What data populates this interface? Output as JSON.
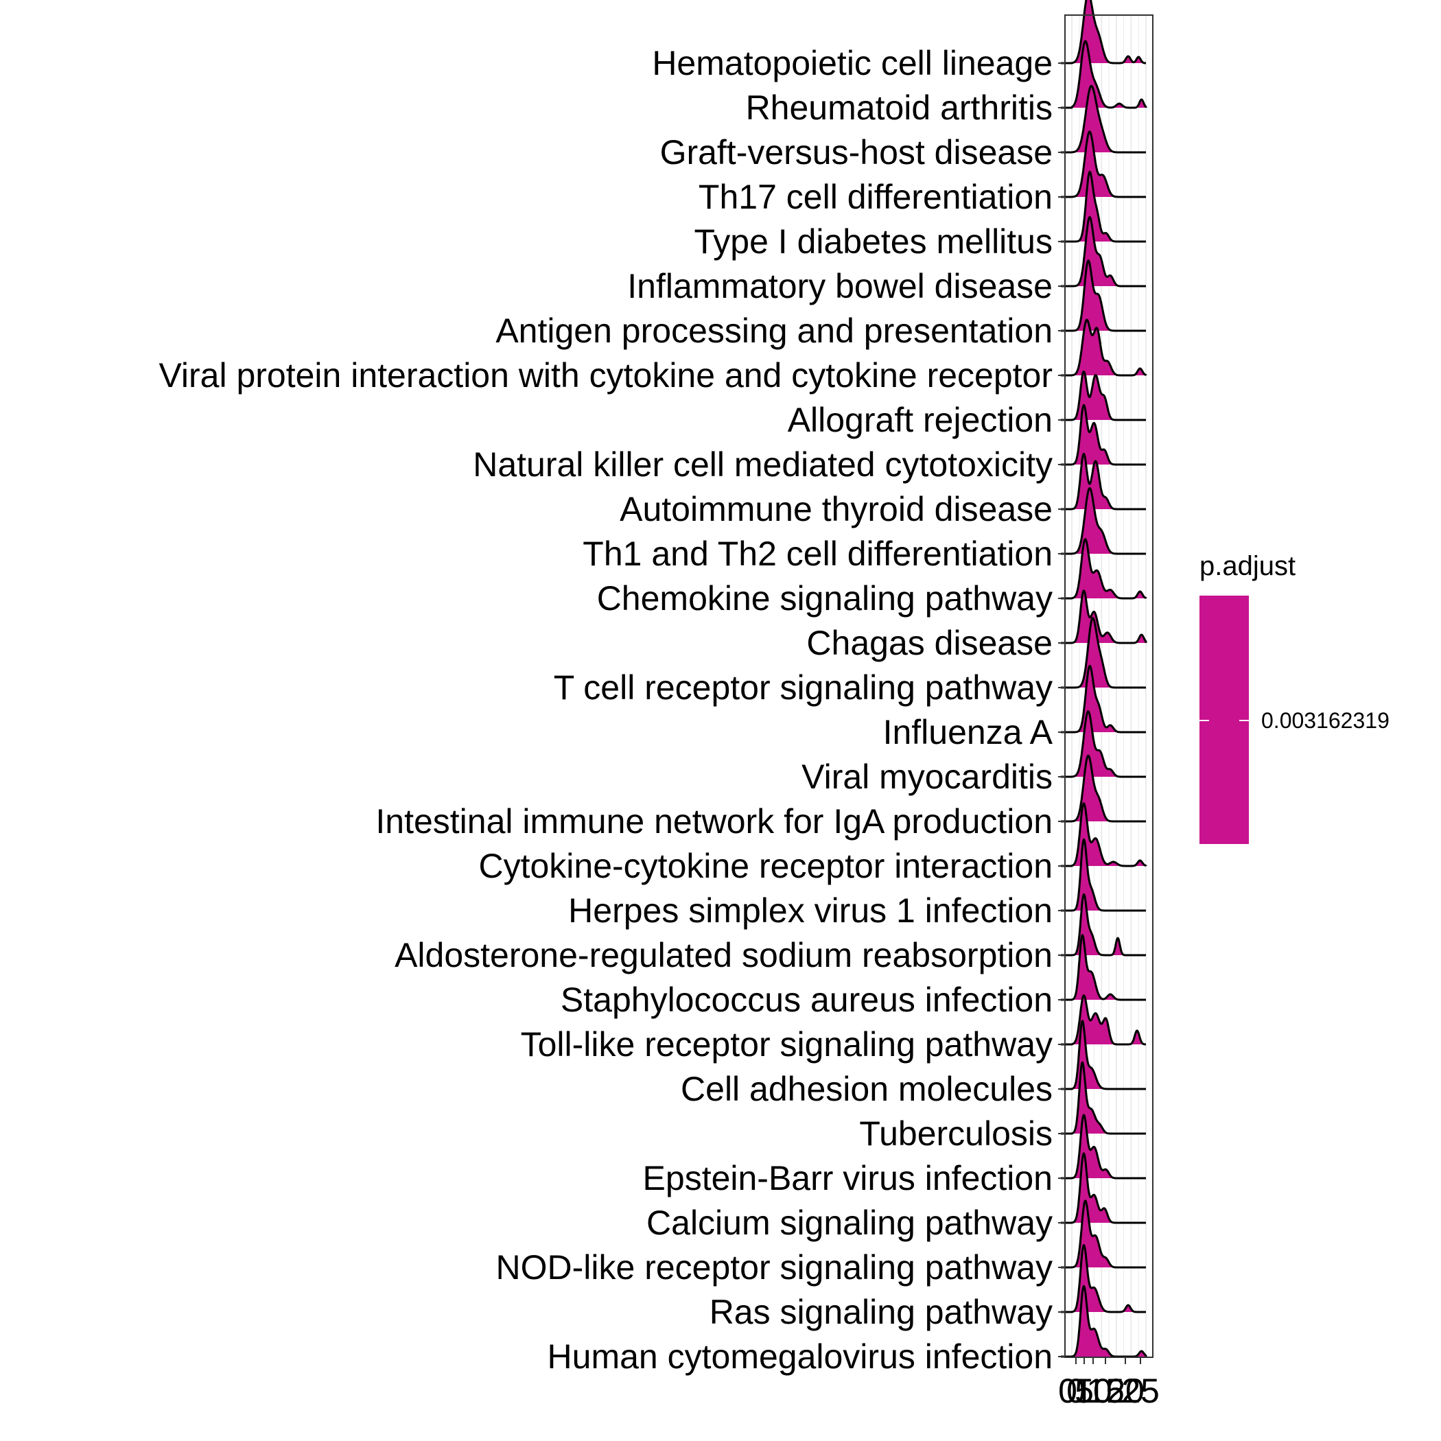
{
  "chart_data": {
    "type": "ridgeline",
    "title": "",
    "xlabel": "",
    "ylabel": "",
    "xlim": [
      0,
      25
    ],
    "x_ticks": [
      "0",
      "0",
      "5",
      "10",
      "15",
      "20",
      "25"
    ],
    "grid": "x-only",
    "fill_color": "#C9128E",
    "line_color": "#000000",
    "legend": {
      "title": "p.adjust",
      "value_label": "0.003162319",
      "color": "#C9128E",
      "placement": "right"
    },
    "series": [
      {
        "name": "Hematopoietic cell lineage",
        "peaks": [
          [
            5.5,
            1.0,
            1.6
          ],
          [
            9.0,
            0.35,
            1.4
          ],
          [
            19.0,
            0.1,
            0.8
          ],
          [
            22.5,
            0.09,
            0.7
          ]
        ]
      },
      {
        "name": "Rheumatoid arthritis",
        "peaks": [
          [
            4.5,
            0.95,
            1.5
          ],
          [
            8.0,
            0.3,
            1.5
          ],
          [
            16.0,
            0.06,
            1.0
          ],
          [
            23.5,
            0.12,
            0.7
          ]
        ]
      },
      {
        "name": "Graft-versus-host disease",
        "peaks": [
          [
            6.5,
            0.95,
            1.8
          ],
          [
            10.0,
            0.25,
            1.5
          ]
        ]
      },
      {
        "name": "Th17 cell differentiation",
        "peaks": [
          [
            6.0,
            0.95,
            1.6
          ],
          [
            10.5,
            0.3,
            1.4
          ]
        ]
      },
      {
        "name": "Type I diabetes mellitus",
        "peaks": [
          [
            6.0,
            1.0,
            1.2
          ],
          [
            8.5,
            0.35,
            1.0
          ],
          [
            11.5,
            0.12,
            1.0
          ]
        ]
      },
      {
        "name": "Inflammatory bowel disease",
        "peaks": [
          [
            6.0,
            1.0,
            1.4
          ],
          [
            9.5,
            0.4,
            1.2
          ],
          [
            13.0,
            0.15,
            1.0
          ]
        ]
      },
      {
        "name": "Antigen processing and presentation",
        "peaks": [
          [
            5.5,
            1.0,
            1.3
          ],
          [
            9.0,
            0.5,
            1.4
          ]
        ]
      },
      {
        "name": "Viral protein interaction with cytokine and cytokine receptor",
        "peaks": [
          [
            5.0,
            0.8,
            1.4
          ],
          [
            8.5,
            0.65,
            1.2
          ],
          [
            12.0,
            0.2,
            1.2
          ],
          [
            23.0,
            0.1,
            0.8
          ]
        ]
      },
      {
        "name": "Allograft rejection",
        "peaks": [
          [
            4.0,
            0.7,
            1.1
          ],
          [
            8.0,
            0.65,
            1.3
          ],
          [
            11.0,
            0.3,
            1.0
          ]
        ]
      },
      {
        "name": "Natural killer cell mediated cytotoxicity",
        "peaks": [
          [
            4.0,
            0.85,
            1.1
          ],
          [
            7.5,
            0.6,
            1.3
          ],
          [
            11.0,
            0.2,
            1.0
          ]
        ]
      },
      {
        "name": "Autoimmune thyroid disease",
        "peaks": [
          [
            4.0,
            0.8,
            1.1
          ],
          [
            8.0,
            0.7,
            1.3
          ],
          [
            11.5,
            0.15,
            1.0
          ]
        ]
      },
      {
        "name": "Th1 and Th2 cell differentiation",
        "peaks": [
          [
            6.0,
            0.95,
            1.6
          ],
          [
            10.0,
            0.3,
            1.4
          ]
        ]
      },
      {
        "name": "Chemokine signaling pathway",
        "peaks": [
          [
            4.5,
            0.85,
            1.3
          ],
          [
            8.5,
            0.4,
            1.5
          ],
          [
            13.0,
            0.12,
            1.2
          ],
          [
            23.0,
            0.1,
            0.8
          ]
        ]
      },
      {
        "name": "Chagas disease",
        "peaks": [
          [
            4.0,
            0.75,
            1.1
          ],
          [
            7.5,
            0.45,
            1.3
          ],
          [
            12.0,
            0.15,
            1.2
          ],
          [
            23.5,
            0.12,
            0.8
          ]
        ]
      },
      {
        "name": "T cell receptor signaling pathway",
        "peaks": [
          [
            7.0,
            1.0,
            1.5
          ],
          [
            10.0,
            0.3,
            1.2
          ]
        ]
      },
      {
        "name": "Influenza A",
        "peaks": [
          [
            6.0,
            0.95,
            1.3
          ],
          [
            9.0,
            0.35,
            1.2
          ],
          [
            13.0,
            0.1,
            1.0
          ]
        ]
      },
      {
        "name": "Viral myocarditis",
        "peaks": [
          [
            5.5,
            0.95,
            1.5
          ],
          [
            9.5,
            0.35,
            1.3
          ],
          [
            13.0,
            0.1,
            1.0
          ]
        ]
      },
      {
        "name": "Intestinal immune network for IgA production",
        "peaks": [
          [
            5.5,
            0.95,
            1.5
          ],
          [
            9.0,
            0.3,
            1.3
          ]
        ]
      },
      {
        "name": "Cytokine-cytokine receptor interaction",
        "peaks": [
          [
            4.0,
            0.9,
            1.2
          ],
          [
            8.0,
            0.4,
            1.5
          ],
          [
            14.0,
            0.06,
            1.2
          ],
          [
            23.0,
            0.08,
            0.8
          ]
        ]
      },
      {
        "name": "Herpes simplex virus 1 infection",
        "peaks": [
          [
            4.0,
            1.0,
            1.0
          ],
          [
            6.5,
            0.3,
            1.2
          ]
        ]
      },
      {
        "name": "Aldosterone-regulated sodium reabsorption",
        "peaks": [
          [
            4.0,
            0.85,
            1.0
          ],
          [
            6.5,
            0.3,
            1.2
          ],
          [
            15.5,
            0.25,
            0.7
          ]
        ]
      },
      {
        "name": "Staphylococcus aureus infection",
        "peaks": [
          [
            3.5,
            0.9,
            1.0
          ],
          [
            6.5,
            0.4,
            1.4
          ],
          [
            13.0,
            0.08,
            1.0
          ]
        ]
      },
      {
        "name": "Toll-like receptor signaling pathway",
        "peaks": [
          [
            4.0,
            0.7,
            1.2
          ],
          [
            8.0,
            0.45,
            1.5
          ],
          [
            11.5,
            0.35,
            1.0
          ],
          [
            22.0,
            0.2,
            0.8
          ]
        ]
      },
      {
        "name": "Cell adhesion molecules",
        "peaks": [
          [
            3.5,
            0.95,
            1.0
          ],
          [
            6.5,
            0.3,
            1.5
          ]
        ]
      },
      {
        "name": "Tuberculosis",
        "peaks": [
          [
            3.5,
            1.0,
            1.0
          ],
          [
            6.5,
            0.35,
            1.4
          ],
          [
            9.5,
            0.1,
            1.0
          ]
        ]
      },
      {
        "name": "Epstein-Barr virus infection",
        "peaks": [
          [
            4.0,
            0.9,
            1.1
          ],
          [
            7.5,
            0.45,
            1.4
          ],
          [
            11.5,
            0.12,
            1.0
          ]
        ]
      },
      {
        "name": "Calcium signaling pathway",
        "peaks": [
          [
            4.0,
            1.0,
            1.1
          ],
          [
            7.5,
            0.4,
            1.3
          ],
          [
            11.0,
            0.2,
            1.0
          ]
        ]
      },
      {
        "name": "NOD-like receptor signaling pathway",
        "peaks": [
          [
            4.5,
            0.95,
            1.2
          ],
          [
            8.0,
            0.45,
            1.4
          ],
          [
            11.5,
            0.12,
            1.0
          ]
        ]
      },
      {
        "name": "Ras signaling pathway",
        "peaks": [
          [
            4.0,
            0.95,
            1.1
          ],
          [
            7.5,
            0.35,
            1.5
          ],
          [
            19.0,
            0.1,
            0.8
          ]
        ]
      },
      {
        "name": "Human cytomegalovirus infection",
        "peaks": [
          [
            4.0,
            1.0,
            1.1
          ],
          [
            7.5,
            0.4,
            1.5
          ],
          [
            11.5,
            0.1,
            1.0
          ],
          [
            23.5,
            0.08,
            0.8
          ]
        ]
      }
    ]
  }
}
